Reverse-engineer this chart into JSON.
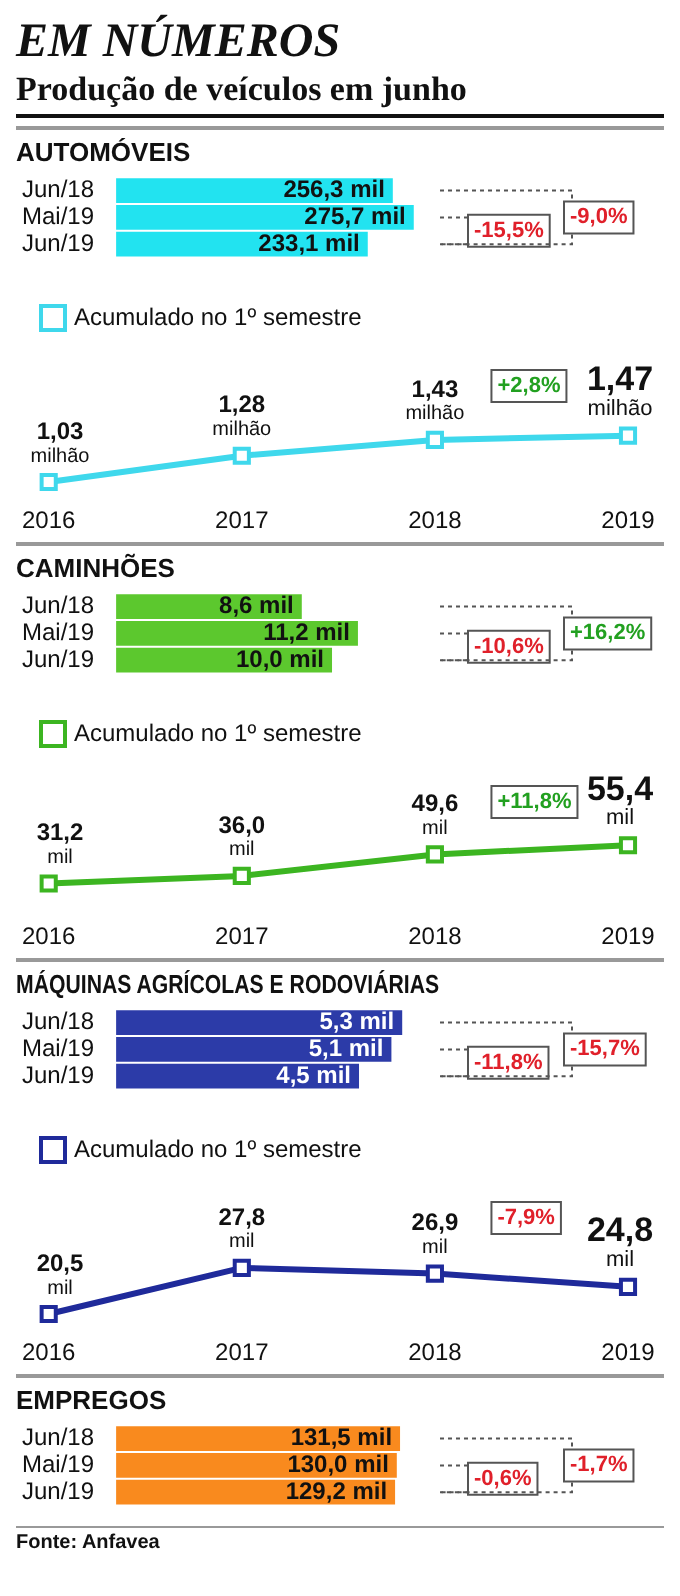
{
  "chart_data": [
    {
      "type": "other",
      "title": "EM NÚMEROS",
      "subtitle": "Produção de veículos em junho"
    },
    {
      "type": "bar",
      "orientation": "horizontal",
      "title": "AUTOMÓVEIS",
      "categories": [
        "Jun/18",
        "Mai/19",
        "Jun/19"
      ],
      "values": [
        256.3,
        275.7,
        233.1
      ],
      "color": "#22e3f0",
      "value_labels": [
        "256,3 mil",
        "275,7 mil",
        "233,1 mil"
      ],
      "annotations": [
        "-15,5%",
        "-9,0%"
      ]
    },
    {
      "type": "line",
      "categories": [
        "2016",
        "2017",
        "2018",
        "2019"
      ],
      "series": [
        {
          "name": "Acumulado no 1º semestre",
          "color": "#3fd8ec",
          "values": [
            1.03,
            1.28,
            1.43,
            1.47
          ],
          "value_labels": [
            "1,03 milhão",
            "1,28 milhão",
            "1,43 milhão",
            "1,47 milhão"
          ]
        }
      ],
      "marker": "square",
      "legend": "top left",
      "annotations": [
        "+2,8%"
      ]
    },
    {
      "type": "bar",
      "orientation": "horizontal",
      "title": "CAMINHÕES",
      "categories": [
        "Jun/18",
        "Mai/19",
        "Jun/19"
      ],
      "values": [
        8.6,
        11.2,
        10.0
      ],
      "color": "#5cc82e",
      "value_labels": [
        "8,6 mil",
        "11,2 mil",
        "10,0 mil"
      ],
      "annotations": [
        "-10,6%",
        "+16,2%"
      ]
    },
    {
      "type": "line",
      "categories": [
        "2016",
        "2017",
        "2018",
        "2019"
      ],
      "series": [
        {
          "name": "Acumulado no 1º semestre",
          "color": "#3cb521",
          "values": [
            31.2,
            36.0,
            49.6,
            55.4
          ],
          "value_labels": [
            "31,2 mil",
            "36,0 mil",
            "49,6 mil",
            "55,4 mil"
          ]
        }
      ],
      "marker": "square",
      "legend": "top left",
      "annotations": [
        "+11,8%"
      ]
    },
    {
      "type": "bar",
      "orientation": "horizontal",
      "title": "MÁQUINAS AGRÍCOLAS E RODOVIÁRIAS",
      "categories": [
        "Jun/18",
        "Mai/19",
        "Jun/19"
      ],
      "values": [
        5.3,
        5.1,
        4.5
      ],
      "color": "#2c3ba8",
      "value_labels": [
        "5,3 mil",
        "5,1 mil",
        "4,5 mil"
      ],
      "annotations": [
        "-11,8%",
        "-15,7%"
      ]
    },
    {
      "type": "line",
      "categories": [
        "2016",
        "2017",
        "2018",
        "2019"
      ],
      "series": [
        {
          "name": "Acumulado no 1º semestre",
          "color": "#1f2a9a",
          "values": [
            20.5,
            27.8,
            26.9,
            24.8
          ],
          "value_labels": [
            "20,5 mil",
            "27,8 mil",
            "26,9 mil",
            "24,8 mil"
          ]
        }
      ],
      "marker": "square",
      "legend": "top left",
      "annotations": [
        "-7,9%"
      ]
    },
    {
      "type": "bar",
      "orientation": "horizontal",
      "title": "EMPREGOS",
      "categories": [
        "Jun/18",
        "Mai/19",
        "Jun/19"
      ],
      "values": [
        131.5,
        130.0,
        129.2
      ],
      "color": "#f98a1e",
      "value_labels": [
        "131,5 mil",
        "130,0 mil",
        "129,2 mil"
      ],
      "annotations": [
        "-0,6%",
        "-1,7%"
      ]
    },
    {
      "type": "other",
      "annotations": [
        "Fonte: Anfavea"
      ]
    }
  ]
}
